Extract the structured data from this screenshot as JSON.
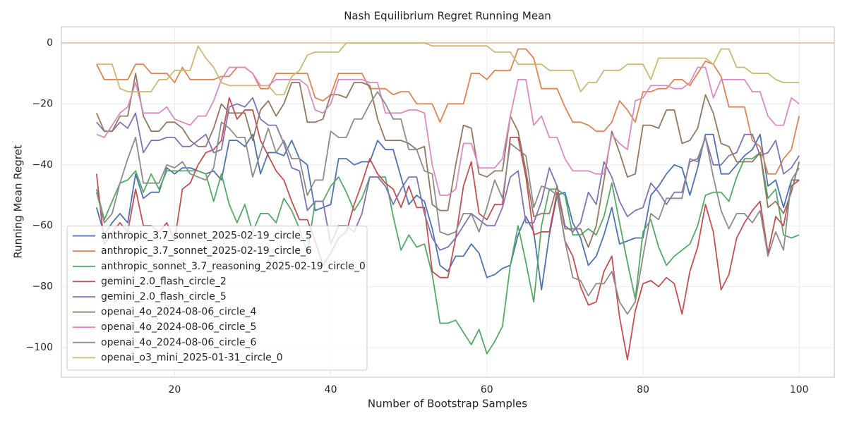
{
  "chart_data": {
    "type": "line",
    "title": "Nash Equilibrium Regret Running Mean",
    "x_label": "Number of Bootstrap Samples",
    "y_label": "Running Mean Regret",
    "x": [
      10,
      11,
      12,
      13,
      14,
      15,
      16,
      17,
      18,
      19,
      20,
      21,
      22,
      23,
      24,
      25,
      26,
      27,
      28,
      29,
      30,
      31,
      32,
      33,
      34,
      35,
      36,
      37,
      38,
      39,
      40,
      41,
      42,
      43,
      44,
      45,
      46,
      47,
      48,
      49,
      50,
      51,
      52,
      53,
      54,
      55,
      56,
      57,
      58,
      59,
      60,
      61,
      62,
      63,
      64,
      65,
      66,
      67,
      68,
      69,
      70,
      71,
      72,
      73,
      74,
      75,
      76,
      77,
      78,
      79,
      80,
      81,
      82,
      83,
      84,
      85,
      86,
      87,
      88,
      89,
      90,
      91,
      92,
      93,
      94,
      95,
      96,
      97,
      98,
      99,
      100
    ],
    "xlim": [
      5.5,
      104.5
    ],
    "xticks": [
      20,
      40,
      60,
      80,
      100
    ],
    "ylim": [
      -109.7,
      5.3
    ],
    "yticks": [
      {
        "value": -100,
        "label": "−100"
      },
      {
        "value": -80,
        "label": "−80"
      },
      {
        "value": -60,
        "label": "−60"
      },
      {
        "value": -40,
        "label": "−40"
      },
      {
        "value": -20,
        "label": "−20"
      },
      0
    ],
    "grid": true,
    "legend": "lower left",
    "hline": {
      "value": 0,
      "color": "#e8b4a0"
    },
    "series": [
      {
        "name": "anthropic_3.7_sonnet_2025-02-19_circle_5",
        "color": "#4c72b0",
        "values": [
          -54,
          -63,
          -59,
          -56,
          -59,
          -43,
          -51,
          -49,
          -49,
          -41,
          -43,
          -41,
          -41,
          -42,
          -43,
          -42,
          -45,
          -32,
          -32,
          -34,
          -30,
          -43,
          -36,
          -36,
          -37,
          -32,
          -38,
          -40,
          -55,
          -54,
          -53,
          -38,
          -38,
          -40,
          -39,
          -39,
          -32,
          -35,
          -35,
          -44,
          -53,
          -50,
          -52,
          -61,
          -73,
          -75,
          -70,
          -70,
          -66,
          -69,
          -77,
          -76,
          -74,
          -73,
          -63,
          -57,
          -62,
          -81,
          -63,
          -50,
          -49,
          -59,
          -64,
          -73,
          -70,
          -63,
          -54,
          -66,
          -65,
          -64,
          -64,
          -50,
          -47,
          -43,
          -40,
          -41,
          -50,
          -41,
          -30,
          -30,
          -43,
          -43,
          -40,
          -37,
          -35,
          -30,
          -47,
          -45,
          -54,
          -45,
          -45
        ]
      },
      {
        "name": "anthropic_3.7_sonnet_2025-02-19_circle_6",
        "color": "#dd8452",
        "values": [
          -7,
          -12,
          -12,
          -12,
          -12,
          -7,
          -7,
          -10,
          -10,
          -10,
          -13,
          -8,
          -12,
          -12,
          -12,
          -12,
          -11,
          -11,
          -8,
          -8,
          -10,
          -15,
          -15,
          -10,
          -10,
          -10,
          -10,
          -10,
          -18,
          -19,
          -17,
          -10,
          -10,
          -10,
          -10,
          -15,
          -15,
          -15,
          -17,
          -16,
          -16,
          -20,
          -20,
          -20,
          -26,
          -20,
          -20,
          -20,
          -10,
          -10,
          -12,
          -9,
          -9,
          -9,
          -2,
          -2,
          -5,
          -15,
          -15,
          -15,
          -21,
          -26,
          -26,
          -27,
          -29,
          -29,
          -26,
          -19,
          -22,
          -26,
          -16,
          -16,
          -15,
          -15,
          -12,
          -12,
          -14,
          -10,
          -6,
          -7,
          -11,
          -21,
          -21,
          -21,
          -32,
          -34,
          -43,
          -43,
          -38,
          -35,
          -24
        ]
      },
      {
        "name": "anthropic_sonnet_3.7_reasoning_2025-02-19_circle_0",
        "color": "#55a868",
        "values": [
          -48,
          -58,
          -52,
          -46,
          -45,
          -42,
          -49,
          -43,
          -48,
          -42,
          -42,
          -42,
          -42,
          -42,
          -43,
          -52,
          -43,
          -53,
          -59,
          -53,
          -62,
          -56,
          -56,
          -59,
          -51,
          -55,
          -61,
          -69,
          -52,
          -52,
          -47,
          -44,
          -49,
          -55,
          -51,
          -44,
          -44,
          -44,
          -57,
          -68,
          -63,
          -67,
          -66,
          -76,
          -92,
          -92,
          -91,
          -95,
          -99,
          -94,
          -102,
          -98,
          -93,
          -73,
          -60,
          -72,
          -85,
          -60,
          -48,
          -48,
          -50,
          -63,
          -63,
          -61,
          -63,
          -57,
          -46,
          -59,
          -72,
          -84,
          -62,
          -58,
          -67,
          -73,
          -70,
          -68,
          -66,
          -60,
          -50,
          -49,
          -49,
          -52,
          -44,
          -38,
          -38,
          -36,
          -51,
          -48,
          -63,
          -64,
          -63
        ]
      },
      {
        "name": "gemini_2.0_flash_circle_2",
        "color": "#c44e52",
        "values": [
          -43,
          -66,
          -62,
          -59,
          -62,
          -48,
          -60,
          -60,
          -62,
          -59,
          -65,
          -48,
          -46,
          -40,
          -36,
          -35,
          -32,
          -18,
          -25,
          -22,
          -22,
          -32,
          -37,
          -42,
          -45,
          -52,
          -58,
          -58,
          -65,
          -73,
          -69,
          -64,
          -62,
          -53,
          -46,
          -38,
          -43,
          -46,
          -48,
          -54,
          -47,
          -54,
          -54,
          -75,
          -77,
          -77,
          -64,
          -47,
          -39,
          -56,
          -58,
          -53,
          -53,
          -31,
          -31,
          -44,
          -63,
          -62,
          -62,
          -49,
          -65,
          -70,
          -80,
          -86,
          -85,
          -75,
          -70,
          -90,
          -104,
          -88,
          -79,
          -78,
          -80,
          -77,
          -79,
          -89,
          -75,
          -67,
          -53,
          -62,
          -81,
          -76,
          -64,
          -59,
          -55,
          -52,
          -69,
          -57,
          -60,
          -47,
          -45
        ]
      },
      {
        "name": "gemini_2.0_flash_circle_5",
        "color": "#8172b3",
        "values": [
          -26,
          -29,
          -29,
          -26,
          -28,
          -23,
          -36,
          -32,
          -32,
          -31,
          -31,
          -34,
          -34,
          -32,
          -30,
          -36,
          -35,
          -21,
          -20,
          -21,
          -18,
          -25,
          -27,
          -27,
          -33,
          -41,
          -42,
          -55,
          -52,
          -52,
          -66,
          -60,
          -60,
          -62,
          -56,
          -44,
          -44,
          -47,
          -53,
          -48,
          -44,
          -44,
          -56,
          -64,
          -68,
          -67,
          -64,
          -60,
          -56,
          -58,
          -60,
          -60,
          -54,
          -44,
          -42,
          -59,
          -59,
          -52,
          -41,
          -47,
          -60,
          -62,
          -59,
          -49,
          -53,
          -39,
          -44,
          -52,
          -57,
          -55,
          -54,
          -46,
          -49,
          -53,
          -49,
          -49,
          -39,
          -38,
          -31,
          -40,
          -40,
          -37,
          -36,
          -30,
          -30,
          -37,
          -36,
          -32,
          -43,
          -41,
          -37
        ]
      },
      {
        "name": "openai_4o_2024-08-06_circle_4",
        "color": "#937860",
        "values": [
          -23,
          -29,
          -29,
          -24,
          -24,
          -10,
          -24,
          -29,
          -29,
          -26,
          -26,
          -28,
          -32,
          -34,
          -34,
          -28,
          -20,
          -23,
          -23,
          -23,
          -32,
          -22,
          -19,
          -24,
          -20,
          -13,
          -13,
          -26,
          -26,
          -25,
          -17,
          -17,
          -18,
          -13,
          -13,
          -14,
          -25,
          -32,
          -32,
          -32,
          -33,
          -35,
          -34,
          -53,
          -55,
          -55,
          -40,
          -27,
          -28,
          -43,
          -44,
          -42,
          -42,
          -24,
          -29,
          -42,
          -57,
          -56,
          -56,
          -47,
          -61,
          -61,
          -61,
          -67,
          -60,
          -45,
          -29,
          -36,
          -44,
          -43,
          -27,
          -27,
          -28,
          -22,
          -22,
          -33,
          -32,
          -28,
          -17,
          -23,
          -33,
          -34,
          -39,
          -39,
          -39,
          -36,
          -54,
          -52,
          -56,
          -49,
          -39
        ]
      },
      {
        "name": "openai_4o_2024-08-06_circle_5",
        "color": "#da8bc3",
        "values": [
          -30,
          -31,
          -27,
          -23,
          -21,
          -13,
          -23,
          -23,
          -23,
          -21,
          -25,
          -26,
          -27,
          -24,
          -24,
          -19,
          -12,
          -8,
          -8,
          -8,
          -10,
          -14,
          -14,
          -12,
          -12,
          -12,
          -12,
          -14,
          -22,
          -23,
          -20,
          -12,
          -12,
          -12,
          -12,
          -13,
          -13,
          -23,
          -23,
          -23,
          -22,
          -22,
          -23,
          -40,
          -50,
          -50,
          -48,
          -33,
          -33,
          -41,
          -41,
          -41,
          -38,
          -24,
          -12,
          -12,
          -27,
          -24,
          -31,
          -31,
          -38,
          -42,
          -42,
          -42,
          -43,
          -43,
          -30,
          -33,
          -35,
          -19,
          -18,
          -14,
          -14,
          -14,
          -15,
          -15,
          -13,
          -8,
          -8,
          -18,
          -12,
          -12,
          -12,
          -12,
          -16,
          -16,
          -24,
          -27,
          -27,
          -18,
          -20
        ]
      },
      {
        "name": "openai_4o_2024-08-06_circle_6",
        "color": "#8c8c8c",
        "values": [
          -49,
          -59,
          -56,
          -46,
          -38,
          -31,
          -46,
          -46,
          -46,
          -40,
          -41,
          -39,
          -43,
          -44,
          -45,
          -41,
          -26,
          -28,
          -31,
          -31,
          -44,
          -36,
          -28,
          -36,
          -32,
          -38,
          -38,
          -50,
          -45,
          -45,
          -29,
          -31,
          -31,
          -25,
          -25,
          -20,
          -16,
          -20,
          -25,
          -25,
          -35,
          -35,
          -42,
          -43,
          -62,
          -63,
          -62,
          -56,
          -56,
          -62,
          -54,
          -45,
          -51,
          -33,
          -35,
          -37,
          -54,
          -47,
          -48,
          -50,
          -65,
          -77,
          -78,
          -83,
          -79,
          -79,
          -75,
          -85,
          -89,
          -85,
          -70,
          -56,
          -58,
          -51,
          -51,
          -51,
          -38,
          -39,
          -31,
          -44,
          -55,
          -61,
          -56,
          -56,
          -59,
          -55,
          -70,
          -62,
          -68,
          -45,
          -41
        ]
      },
      {
        "name": "openai_o3_mini_2025-01-31_circle_0",
        "color": "#ccb974",
        "values": [
          -7,
          -7,
          -7,
          -15,
          -16,
          -16,
          -16,
          -16,
          -12,
          -12,
          -9,
          -9,
          -9,
          -1,
          -5,
          -8,
          -13,
          -14,
          -14,
          -14,
          -14,
          -14,
          -14,
          -17,
          -17,
          -11,
          -9,
          -4,
          -3,
          -3,
          -3,
          -3,
          0,
          0,
          0,
          0,
          0,
          0,
          0,
          0,
          0,
          0,
          0,
          -1,
          -1,
          -1,
          -1,
          -1,
          -1,
          -1,
          -1,
          -3,
          -3,
          -3,
          -7,
          -7,
          -7,
          -7,
          -9,
          -9,
          -9,
          -9,
          -16,
          -13,
          -13,
          -9,
          -9,
          -9,
          -7,
          -7,
          -7,
          -12,
          -5,
          -5,
          -5,
          -5,
          -5,
          -5,
          -5,
          -7,
          -2,
          -2,
          -8,
          -8,
          -10,
          -10,
          -10,
          -12,
          -13,
          -13,
          -13
        ]
      }
    ]
  }
}
